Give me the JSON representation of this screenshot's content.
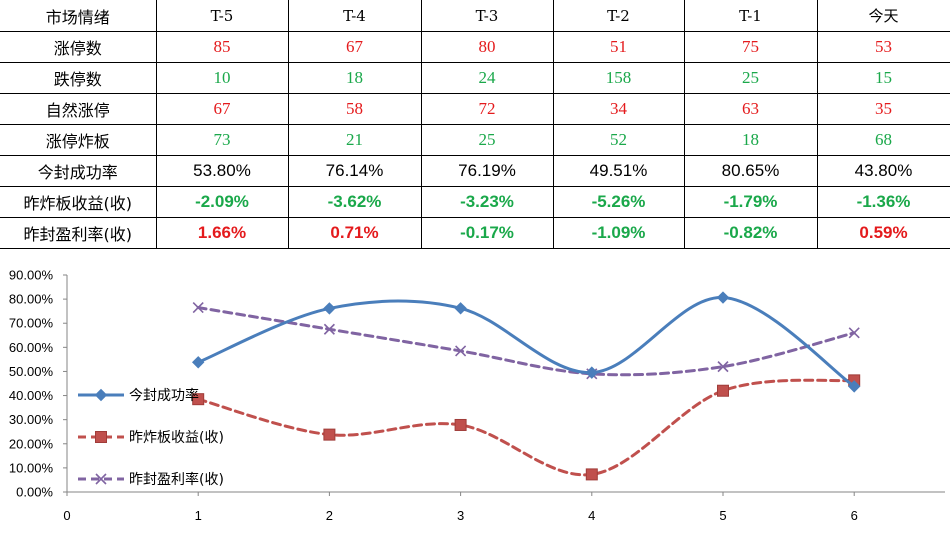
{
  "table": {
    "header": [
      "市场情绪",
      "T-5",
      "T-4",
      "T-3",
      "T-2",
      "T-1",
      "今天"
    ],
    "rows": [
      {
        "label": "涨停数",
        "cells": [
          "85",
          "67",
          "80",
          "51",
          "75",
          "53"
        ],
        "colors": [
          "red",
          "red",
          "red",
          "red",
          "red",
          "red"
        ],
        "style": "num"
      },
      {
        "label": "跌停数",
        "cells": [
          "10",
          "18",
          "24",
          "158",
          "25",
          "15"
        ],
        "colors": [
          "green",
          "green",
          "green",
          "green",
          "green",
          "green"
        ],
        "style": "num"
      },
      {
        "label": "自然涨停",
        "cells": [
          "67",
          "58",
          "72",
          "34",
          "63",
          "35"
        ],
        "colors": [
          "red",
          "red",
          "red",
          "red",
          "red",
          "red"
        ],
        "style": "num"
      },
      {
        "label": "涨停炸板",
        "cells": [
          "73",
          "21",
          "25",
          "52",
          "18",
          "68"
        ],
        "colors": [
          "green",
          "green",
          "green",
          "green",
          "green",
          "green"
        ],
        "style": "num"
      },
      {
        "label": "今封成功率",
        "cells": [
          "53.80%",
          "76.14%",
          "76.19%",
          "49.51%",
          "80.65%",
          "43.80%"
        ],
        "colors": [
          "black",
          "black",
          "black",
          "black",
          "black",
          "black"
        ],
        "style": "pct"
      },
      {
        "label": "昨炸板收益(收)",
        "cells": [
          "-2.09%",
          "-3.62%",
          "-3.23%",
          "-5.26%",
          "-1.79%",
          "-1.36%"
        ],
        "colors": [
          "green",
          "green",
          "green",
          "green",
          "green",
          "green"
        ],
        "style": "pct bold"
      },
      {
        "label": "昨封盈利率(收)",
        "cells": [
          "1.66%",
          "0.71%",
          "-0.17%",
          "-1.09%",
          "-0.82%",
          "0.59%"
        ],
        "colors": [
          "red",
          "red",
          "green",
          "green",
          "green",
          "red"
        ],
        "style": "pct bold"
      }
    ]
  },
  "chart_data": {
    "type": "line",
    "x": [
      1,
      2,
      3,
      4,
      5,
      6
    ],
    "xlim": [
      0,
      7
    ],
    "xticks": [
      "0",
      "1",
      "2",
      "3",
      "4",
      "5",
      "6"
    ],
    "ylim": [
      0,
      90
    ],
    "yticks": [
      "0.00%",
      "10.00%",
      "20.00%",
      "30.00%",
      "40.00%",
      "50.00%",
      "60.00%",
      "70.00%",
      "80.00%",
      "90.00%"
    ],
    "grid": false,
    "smooth": true,
    "legend": "left",
    "series": [
      {
        "name": "今封成功率",
        "values": [
          53.8,
          76.14,
          76.19,
          49.51,
          80.65,
          43.8
        ],
        "color": "#4a7ebb",
        "marker": "diamond",
        "dash": "solid"
      },
      {
        "name": "昨炸板收益(收)",
        "values": [
          38.5,
          23.8,
          27.8,
          7.3,
          42.0,
          46.3
        ],
        "color": "#c0504d",
        "marker": "square",
        "dash": "dashed"
      },
      {
        "name": "昨封盈利率(收)",
        "values": [
          76.5,
          67.5,
          58.5,
          49.0,
          52.0,
          66.0
        ],
        "color": "#8064a2",
        "marker": "x",
        "dash": "dashed"
      }
    ]
  }
}
